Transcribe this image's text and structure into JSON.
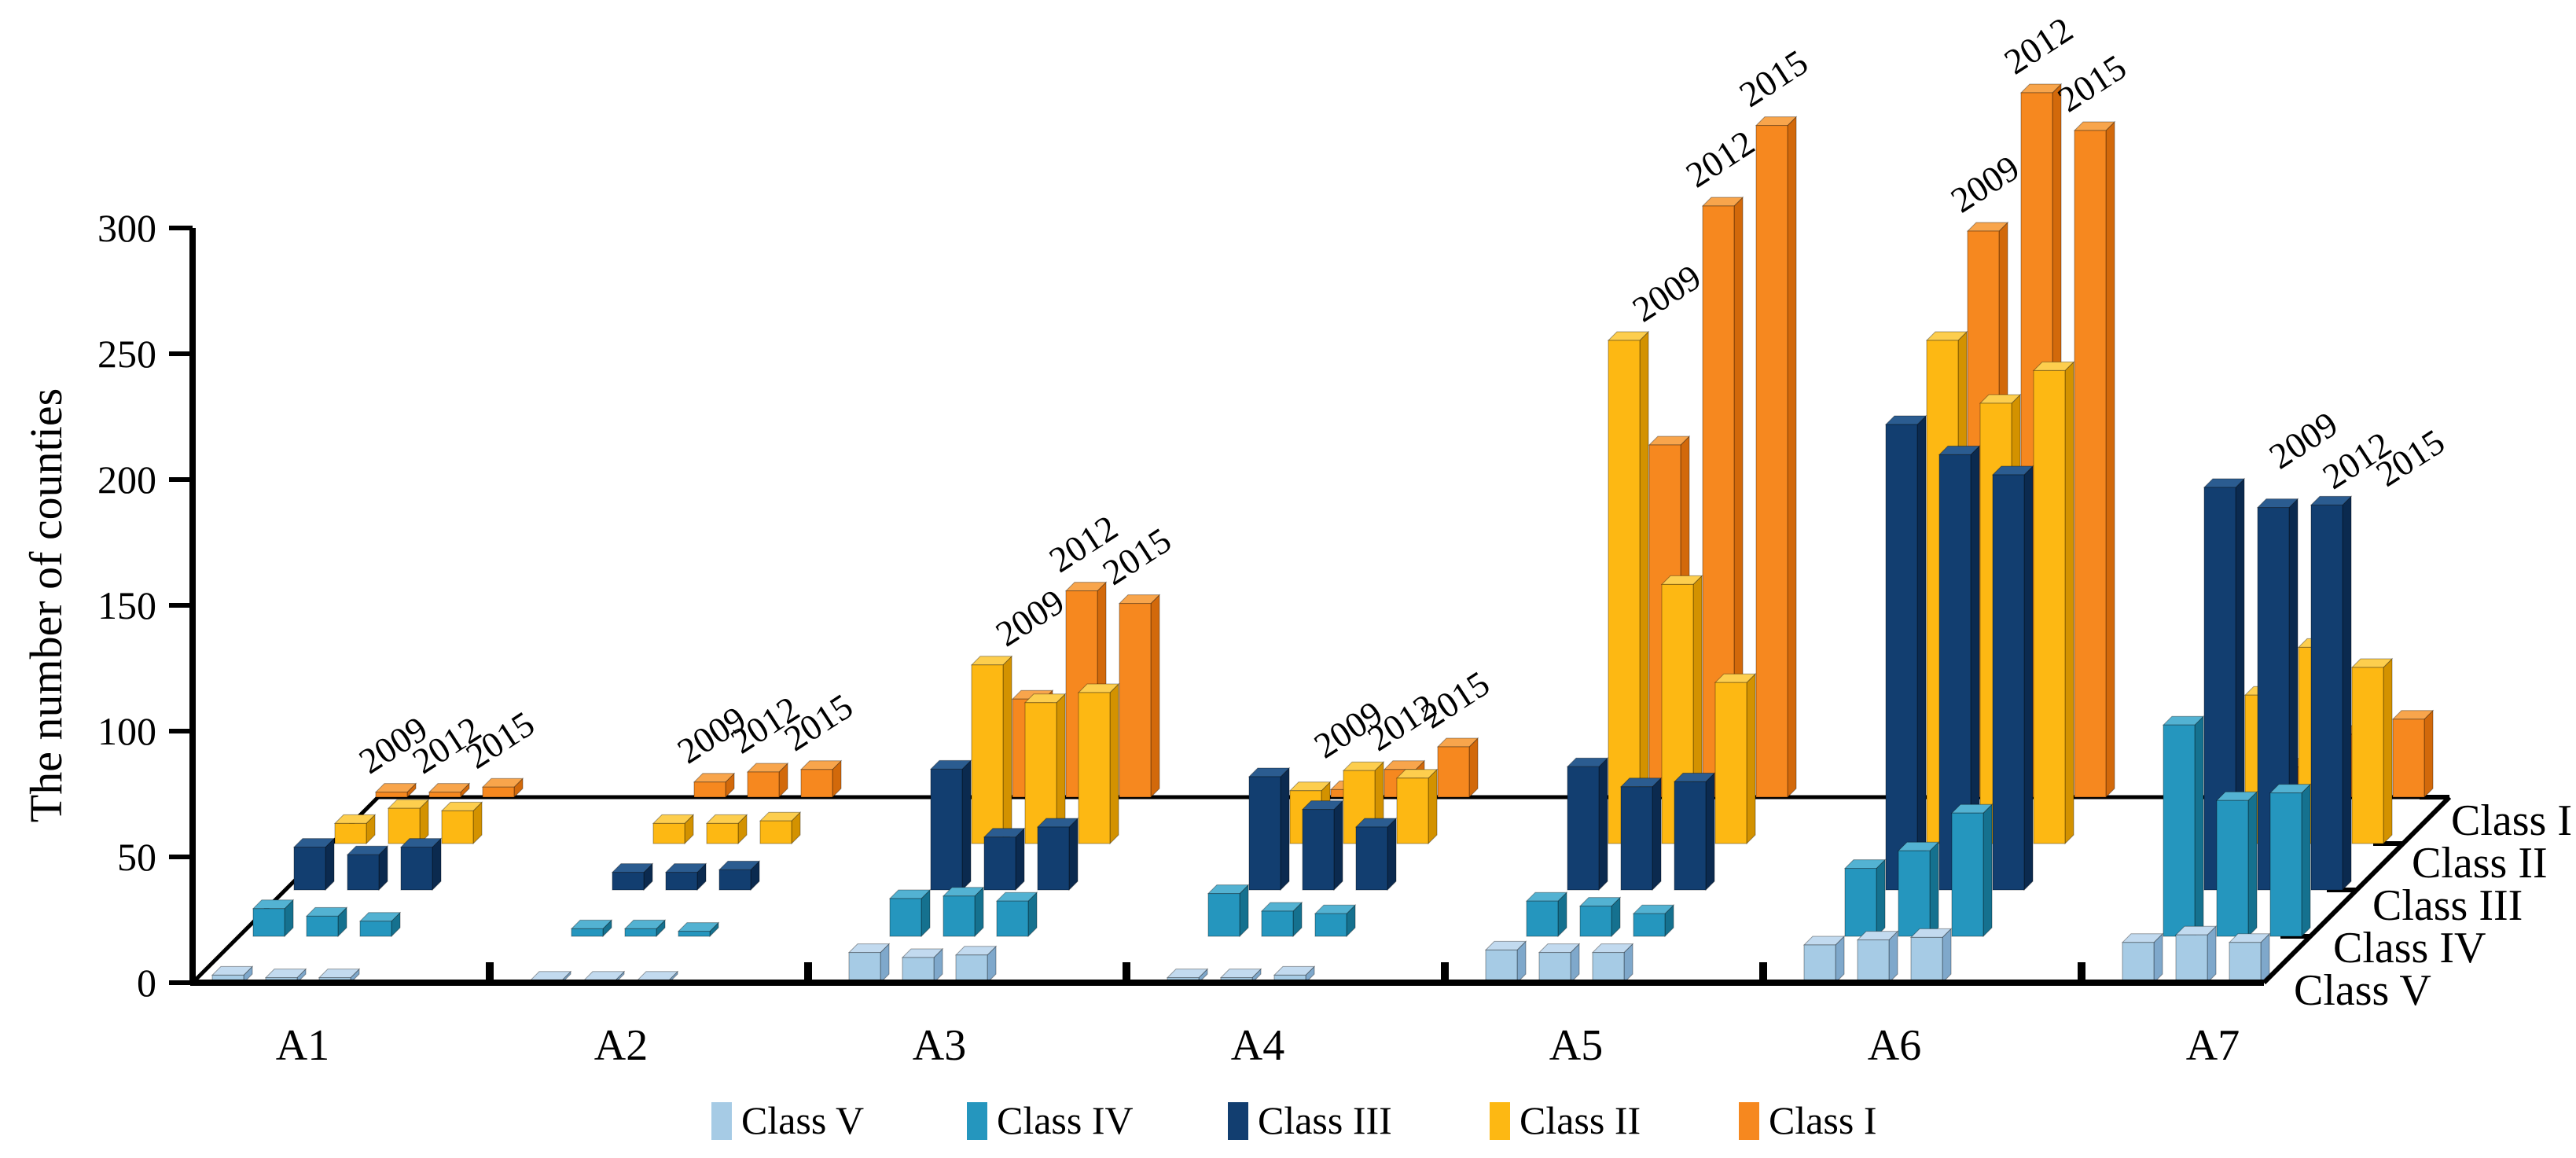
{
  "chart_data": {
    "type": "bar",
    "title": "",
    "ylabel": "The number of counties",
    "ylim": [
      0,
      300
    ],
    "yticks": [
      0,
      50,
      100,
      150,
      200,
      250,
      300
    ],
    "grid": false,
    "legend_position": "bottom",
    "groups": [
      "A1",
      "A2",
      "A3",
      "A4",
      "A5",
      "A6",
      "A7"
    ],
    "years": [
      "2009",
      "2012",
      "2015"
    ],
    "classes_front_to_back": [
      "Class V",
      "Class IV",
      "Class III",
      "Class II",
      "Class I"
    ],
    "depth_axis_labels_top_to_bottom": [
      "Class I",
      "Class II",
      "Class III",
      "Class IV",
      "Class V"
    ],
    "series": [
      {
        "group": "A1",
        "values": {
          "Class V": [
            3,
            2,
            2
          ],
          "Class IV": [
            11,
            8,
            6
          ],
          "Class III": [
            17,
            14,
            17
          ],
          "Class II": [
            8,
            14,
            13
          ],
          "Class I": [
            2,
            2,
            4
          ]
        }
      },
      {
        "group": "A2",
        "values": {
          "Class V": [
            1,
            1,
            1
          ],
          "Class IV": [
            3,
            3,
            2
          ],
          "Class III": [
            7,
            7,
            8
          ],
          "Class II": [
            8,
            8,
            9
          ],
          "Class I": [
            6,
            10,
            11
          ]
        }
      },
      {
        "group": "A3",
        "values": {
          "Class V": [
            12,
            10,
            11
          ],
          "Class IV": [
            15,
            16,
            14
          ],
          "Class III": [
            48,
            21,
            25
          ],
          "Class II": [
            71,
            56,
            60
          ],
          "Class I": [
            39,
            82,
            77
          ]
        }
      },
      {
        "group": "A4",
        "values": {
          "Class V": [
            2,
            2,
            3
          ],
          "Class IV": [
            17,
            10,
            9
          ],
          "Class III": [
            45,
            32,
            25
          ],
          "Class II": [
            21,
            29,
            26
          ],
          "Class I": [
            3,
            11,
            20
          ]
        }
      },
      {
        "group": "A5",
        "values": {
          "Class V": [
            13,
            12,
            12
          ],
          "Class IV": [
            14,
            12,
            9
          ],
          "Class III": [
            49,
            41,
            43
          ],
          "Class II": [
            200,
            103,
            64
          ],
          "Class I": [
            140,
            235,
            267
          ]
        }
      },
      {
        "group": "A6",
        "values": {
          "Class V": [
            15,
            17,
            18
          ],
          "Class IV": [
            27,
            34,
            49
          ],
          "Class III": [
            185,
            173,
            165
          ],
          "Class II": [
            200,
            175,
            188
          ],
          "Class I": [
            225,
            280,
            265
          ]
        }
      },
      {
        "group": "A7",
        "values": {
          "Class V": [
            16,
            19,
            16
          ],
          "Class IV": [
            84,
            54,
            57
          ],
          "Class III": [
            160,
            152,
            153
          ],
          "Class II": [
            59,
            78,
            70
          ],
          "Class I": [
            12,
            25,
            31
          ]
        }
      }
    ],
    "colors": {
      "Class V": {
        "front": "#A6CBE5",
        "side": "#7FA8CB",
        "top": "#C2DAEF"
      },
      "Class IV": {
        "front": "#2596BE",
        "side": "#15718F",
        "top": "#53B2D2"
      },
      "Class III": {
        "front": "#123E70",
        "side": "#0B2A4F",
        "top": "#2B5C90"
      },
      "Class II": {
        "front": "#FDB813",
        "side": "#D39200",
        "top": "#FDCE4E"
      },
      "Class I": {
        "front": "#F6881F",
        "side": "#D2690B",
        "top": "#F8A54C"
      }
    },
    "axis_color": "#000000"
  },
  "legend": {
    "items": [
      {
        "label": "Class V",
        "color": "#A6CBE5"
      },
      {
        "label": "Class IV",
        "color": "#2596BE"
      },
      {
        "label": "Class III",
        "color": "#123E70"
      },
      {
        "label": "Class II",
        "color": "#FDB813"
      },
      {
        "label": "Class I",
        "color": "#F6881F"
      }
    ]
  }
}
